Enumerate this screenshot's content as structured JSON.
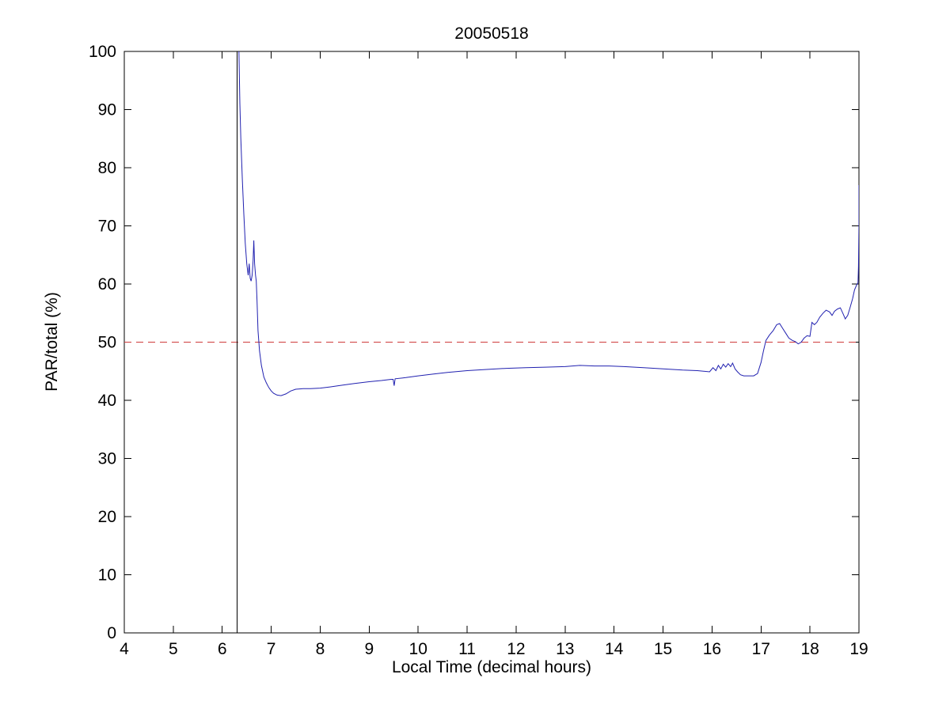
{
  "figure": {
    "background": "#ffffff"
  },
  "chart_data": {
    "type": "line",
    "title": "20050518",
    "xlabel": "Local Time (decimal hours)",
    "ylabel": "PAR/total (%)",
    "xlim": [
      4,
      19
    ],
    "ylim": [
      0,
      100
    ],
    "xticks": [
      4,
      5,
      6,
      7,
      8,
      9,
      10,
      11,
      12,
      13,
      14,
      15,
      16,
      17,
      18,
      19
    ],
    "yticks": [
      0,
      10,
      20,
      30,
      40,
      50,
      60,
      70,
      80,
      90,
      100
    ],
    "grid": false,
    "legend": null,
    "axis_color": "#000000",
    "series": [
      {
        "name": "PAR/total ratio",
        "color": "#2121b0",
        "points": [
          [
            6.32,
            128
          ],
          [
            6.33,
            110
          ],
          [
            6.34,
            100
          ],
          [
            6.36,
            91
          ],
          [
            6.38,
            85
          ],
          [
            6.41,
            78
          ],
          [
            6.44,
            72
          ],
          [
            6.47,
            67
          ],
          [
            6.5,
            63.5
          ],
          [
            6.53,
            61.5
          ],
          [
            6.55,
            63.5
          ],
          [
            6.57,
            61
          ],
          [
            6.59,
            60.5
          ],
          [
            6.61,
            61.5
          ],
          [
            6.63,
            64
          ],
          [
            6.645,
            67.5
          ],
          [
            6.66,
            63.5
          ],
          [
            6.68,
            61.5
          ],
          [
            6.695,
            60.5
          ],
          [
            6.71,
            57
          ],
          [
            6.73,
            52
          ],
          [
            6.76,
            48.5
          ],
          [
            6.8,
            46
          ],
          [
            6.85,
            44
          ],
          [
            6.9,
            43
          ],
          [
            6.95,
            42.2
          ],
          [
            7.0,
            41.6
          ],
          [
            7.05,
            41.2
          ],
          [
            7.12,
            40.9
          ],
          [
            7.2,
            40.8
          ],
          [
            7.3,
            41.1
          ],
          [
            7.4,
            41.6
          ],
          [
            7.5,
            41.9
          ],
          [
            7.65,
            42.0
          ],
          [
            7.8,
            42.0
          ],
          [
            8.0,
            42.1
          ],
          [
            8.2,
            42.3
          ],
          [
            8.45,
            42.6
          ],
          [
            8.7,
            42.9
          ],
          [
            9.0,
            43.2
          ],
          [
            9.25,
            43.4
          ],
          [
            9.45,
            43.6
          ],
          [
            9.49,
            43.6
          ],
          [
            9.51,
            42.5
          ],
          [
            9.53,
            43.7
          ],
          [
            9.75,
            43.9
          ],
          [
            10.0,
            44.2
          ],
          [
            10.3,
            44.5
          ],
          [
            10.6,
            44.8
          ],
          [
            11.0,
            45.1
          ],
          [
            11.4,
            45.3
          ],
          [
            11.8,
            45.5
          ],
          [
            12.2,
            45.6
          ],
          [
            12.6,
            45.7
          ],
          [
            13.0,
            45.8
          ],
          [
            13.3,
            46.0
          ],
          [
            13.6,
            45.9
          ],
          [
            13.9,
            45.9
          ],
          [
            14.2,
            45.8
          ],
          [
            14.6,
            45.6
          ],
          [
            15.0,
            45.4
          ],
          [
            15.4,
            45.2
          ],
          [
            15.7,
            45.1
          ],
          [
            15.95,
            44.9
          ],
          [
            16.02,
            45.6
          ],
          [
            16.08,
            45.1
          ],
          [
            16.13,
            46.0
          ],
          [
            16.18,
            45.4
          ],
          [
            16.23,
            46.2
          ],
          [
            16.28,
            45.7
          ],
          [
            16.33,
            46.3
          ],
          [
            16.38,
            45.8
          ],
          [
            16.42,
            46.4
          ],
          [
            16.47,
            45.4
          ],
          [
            16.52,
            44.9
          ],
          [
            16.58,
            44.4
          ],
          [
            16.65,
            44.2
          ],
          [
            16.75,
            44.2
          ],
          [
            16.85,
            44.2
          ],
          [
            16.93,
            44.6
          ],
          [
            17.0,
            46.5
          ],
          [
            17.05,
            48.5
          ],
          [
            17.1,
            50.3
          ],
          [
            17.17,
            51.2
          ],
          [
            17.25,
            52.0
          ],
          [
            17.32,
            53.0
          ],
          [
            17.38,
            53.2
          ],
          [
            17.44,
            52.4
          ],
          [
            17.5,
            51.6
          ],
          [
            17.57,
            50.7
          ],
          [
            17.64,
            50.3
          ],
          [
            17.7,
            50.1
          ],
          [
            17.76,
            49.7
          ],
          [
            17.82,
            50.0
          ],
          [
            17.88,
            50.7
          ],
          [
            17.94,
            51.1
          ],
          [
            18.0,
            51.0
          ],
          [
            18.04,
            53.4
          ],
          [
            18.09,
            53.0
          ],
          [
            18.14,
            53.4
          ],
          [
            18.2,
            54.3
          ],
          [
            18.27,
            55.0
          ],
          [
            18.33,
            55.5
          ],
          [
            18.4,
            55.2
          ],
          [
            18.45,
            54.6
          ],
          [
            18.5,
            55.3
          ],
          [
            18.56,
            55.7
          ],
          [
            18.62,
            55.9
          ],
          [
            18.68,
            54.8
          ],
          [
            18.72,
            54.0
          ],
          [
            18.77,
            54.6
          ],
          [
            18.82,
            56.0
          ],
          [
            18.87,
            57.5
          ],
          [
            18.91,
            59.0
          ],
          [
            18.95,
            59.8
          ],
          [
            18.98,
            60.2
          ],
          [
            18.99,
            63.0
          ],
          [
            19.0,
            70.0
          ],
          [
            19.0,
            77.0
          ]
        ]
      }
    ],
    "reference_lines": [
      {
        "name": "horizontal-50-percent-line",
        "type": "hline",
        "y": 50,
        "color": "#cf3b3b",
        "style": "dashed"
      },
      {
        "name": "vertical-line",
        "type": "vline",
        "x": 6.3,
        "color": "#000000",
        "style": "solid"
      }
    ]
  }
}
